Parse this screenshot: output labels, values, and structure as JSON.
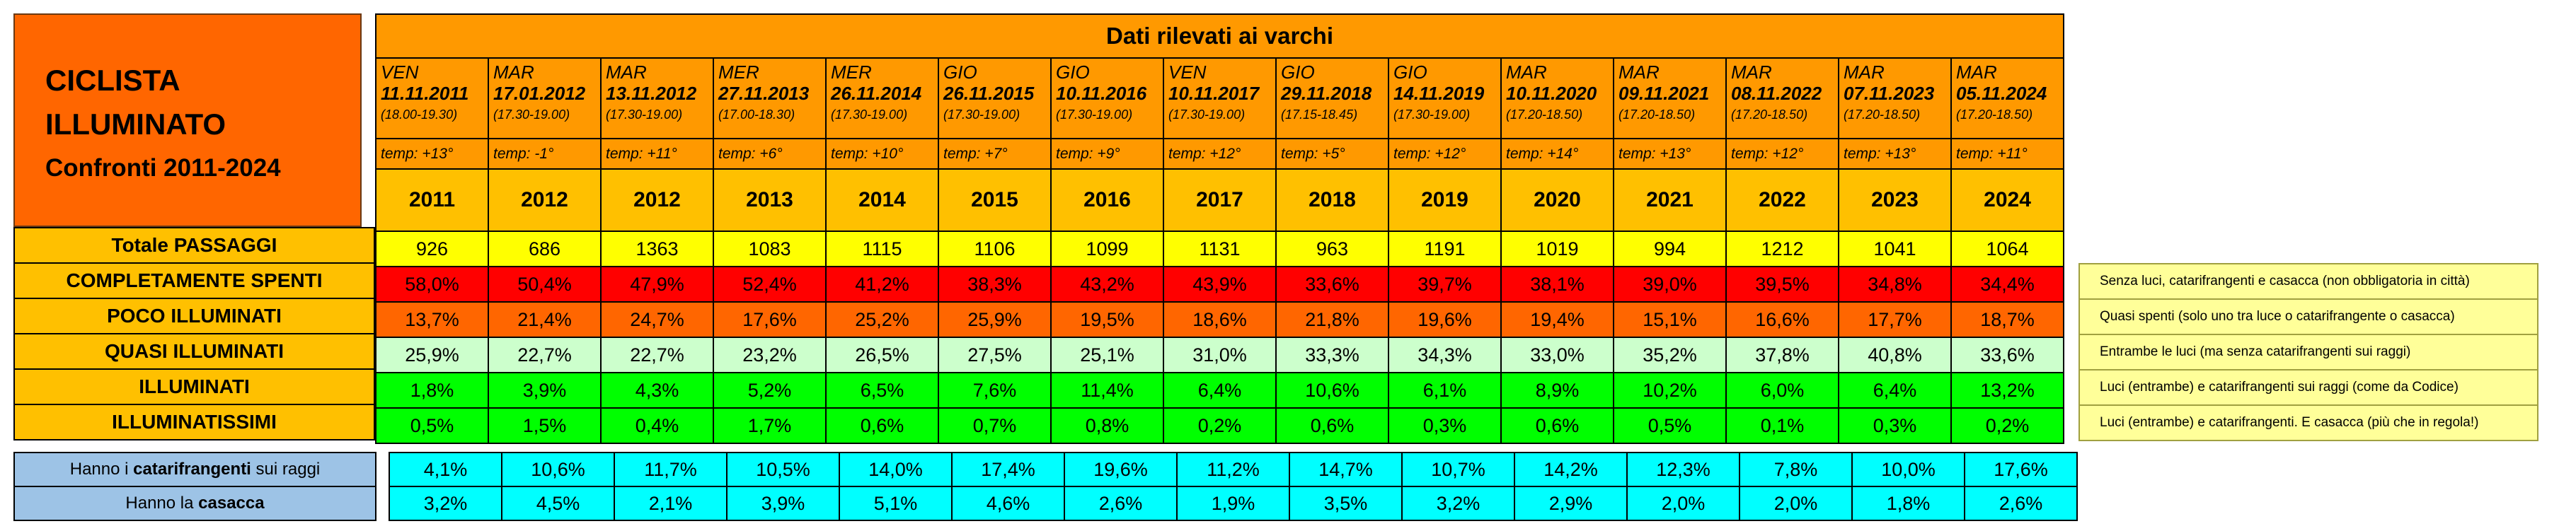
{
  "title": {
    "line1": "CICLISTA",
    "line2": "ILLUMINATO",
    "line3": "Confronti 2011-2024"
  },
  "header": "Dati rilevati ai varchi",
  "columns": [
    {
      "day": "VEN",
      "date": "11.11.2011",
      "time": "(18.00-19.30)",
      "temp": "temp: +13°",
      "year": "2011"
    },
    {
      "day": "MAR",
      "date": "17.01.2012",
      "time": "(17.30-19.00)",
      "temp": "temp: -1°",
      "year": "2012"
    },
    {
      "day": "MAR",
      "date": "13.11.2012",
      "time": "(17.30-19.00)",
      "temp": "temp: +11°",
      "year": "2012"
    },
    {
      "day": "MER",
      "date": "27.11.2013",
      "time": "(17.00-18.30)",
      "temp": "temp: +6°",
      "year": "2013"
    },
    {
      "day": "MER",
      "date": "26.11.2014",
      "time": "(17.30-19.00)",
      "temp": "temp: +10°",
      "year": "2014"
    },
    {
      "day": "GIO",
      "date": "26.11.2015",
      "time": "(17.30-19.00)",
      "temp": "temp: +7°",
      "year": "2015"
    },
    {
      "day": "GIO",
      "date": "10.11.2016",
      "time": "(17.30-19.00)",
      "temp": "temp: +9°",
      "year": "2016"
    },
    {
      "day": "VEN",
      "date": "10.11.2017",
      "time": "(17.30-19.00)",
      "temp": "temp: +12°",
      "year": "2017"
    },
    {
      "day": "GIO",
      "date": "29.11.2018",
      "time": "(17.15-18.45)",
      "temp": "temp: +5°",
      "year": "2018"
    },
    {
      "day": "GIO",
      "date": "14.11.2019",
      "time": "(17.30-19.00)",
      "temp": "temp: +12°",
      "year": "2019"
    },
    {
      "day": "MAR",
      "date": "10.11.2020",
      "time": "(17.20-18.50)",
      "temp": "temp: +14°",
      "year": "2020"
    },
    {
      "day": "MAR",
      "date": "09.11.2021",
      "time": "(17.20-18.50)",
      "temp": "temp: +13°",
      "year": "2021"
    },
    {
      "day": "MAR",
      "date": "08.11.2022",
      "time": "(17.20-18.50)",
      "temp": "temp: +12°",
      "year": "2022"
    },
    {
      "day": "MAR",
      "date": "07.11.2023",
      "time": "(17.20-18.50)",
      "temp": "temp: +13°",
      "year": "2023"
    },
    {
      "day": "MAR",
      "date": "05.11.2024",
      "time": "(17.20-18.50)",
      "temp": "temp: +11°",
      "year": "2024"
    }
  ],
  "rows": [
    {
      "label": "Totale PASSAGGI",
      "values": [
        "926",
        "686",
        "1363",
        "1083",
        "1115",
        "1106",
        "1099",
        "1131",
        "963",
        "1191",
        "1019",
        "994",
        "1212",
        "1041",
        "1064"
      ]
    },
    {
      "label": "COMPLETAMENTE SPENTI",
      "values": [
        "58,0%",
        "50,4%",
        "47,9%",
        "52,4%",
        "41,2%",
        "38,3%",
        "43,2%",
        "43,9%",
        "33,6%",
        "39,7%",
        "38,1%",
        "39,0%",
        "39,5%",
        "34,8%",
        "34,4%"
      ]
    },
    {
      "label": "POCO ILLUMINATI",
      "values": [
        "13,7%",
        "21,4%",
        "24,7%",
        "17,6%",
        "25,2%",
        "25,9%",
        "19,5%",
        "18,6%",
        "21,8%",
        "19,6%",
        "19,4%",
        "15,1%",
        "16,6%",
        "17,7%",
        "18,7%"
      ]
    },
    {
      "label": "QUASI ILLUMINATI",
      "values": [
        "25,9%",
        "22,7%",
        "22,7%",
        "23,2%",
        "26,5%",
        "27,5%",
        "25,1%",
        "31,0%",
        "33,3%",
        "34,3%",
        "33,0%",
        "35,2%",
        "37,8%",
        "40,8%",
        "33,6%"
      ]
    },
    {
      "label": "ILLUMINATI",
      "values": [
        "1,8%",
        "3,9%",
        "4,3%",
        "5,2%",
        "6,5%",
        "7,6%",
        "11,4%",
        "6,4%",
        "10,6%",
        "6,1%",
        "8,9%",
        "10,2%",
        "6,0%",
        "6,4%",
        "13,2%"
      ]
    },
    {
      "label": "ILLUMINATISSIMI",
      "values": [
        "0,5%",
        "1,5%",
        "0,4%",
        "1,7%",
        "0,6%",
        "0,7%",
        "0,8%",
        "0,2%",
        "0,6%",
        "0,3%",
        "0,6%",
        "0,5%",
        "0,1%",
        "0,3%",
        "0,2%"
      ]
    }
  ],
  "extra_rows": [
    {
      "label_pre": "Hanno i ",
      "label_bold": "catarifrangenti",
      "label_post": " sui raggi",
      "values": [
        "4,1%",
        "10,6%",
        "11,7%",
        "10,5%",
        "14,0%",
        "17,4%",
        "19,6%",
        "11,2%",
        "14,7%",
        "10,7%",
        "14,2%",
        "12,3%",
        "7,8%",
        "10,0%",
        "17,6%"
      ]
    },
    {
      "label_pre": "Hanno la ",
      "label_bold": "casacca",
      "label_post": "",
      "values": [
        "3,2%",
        "4,5%",
        "2,1%",
        "3,9%",
        "5,1%",
        "4,6%",
        "2,6%",
        "1,9%",
        "3,5%",
        "3,2%",
        "2,9%",
        "2,0%",
        "2,0%",
        "1,8%",
        "2,6%"
      ]
    }
  ],
  "notes": [
    "Senza luci, catarifrangenti e casacca (non obbligatoria in città)",
    "Quasi spenti (solo uno tra luce o catarifrangente o casacca)",
    "Entrambe le luci (ma senza catarifrangenti sui raggi)",
    "Luci (entrambe) e catarifrangenti sui raggi (come da Codice)",
    "Luci (entrambe) e catarifrangenti. E casacca (più che in regola!)"
  ],
  "colors": {
    "title_bg": "#ff6600",
    "header_bg": "#ff9900",
    "year_bg": "#ffc000",
    "totale": "#ffff00",
    "spenti": "#ff0000",
    "poco": "#ff6600",
    "quasi": "#ccffcc",
    "illuminati": "#00ff00",
    "extra_label": "#9dc3e6",
    "extra_values": "#00ffff",
    "notes": "#ffff99"
  }
}
